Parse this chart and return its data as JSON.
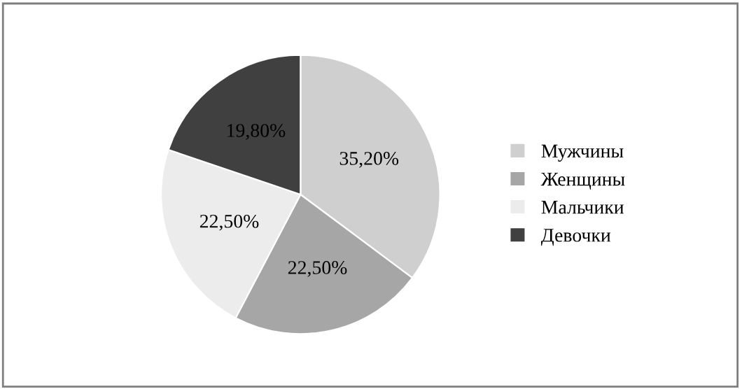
{
  "chart_data": {
    "type": "pie",
    "categories": [
      "Мужчины",
      "Женщины",
      "Мальчики",
      "Девочки"
    ],
    "values": [
      35.2,
      22.5,
      22.5,
      19.8
    ],
    "value_labels": [
      "35,20%",
      "22,50%",
      "22,50%",
      "19,80%"
    ],
    "colors": [
      "#cfcfcf",
      "#a6a6a6",
      "#ececec",
      "#404040"
    ],
    "legend": "right"
  }
}
